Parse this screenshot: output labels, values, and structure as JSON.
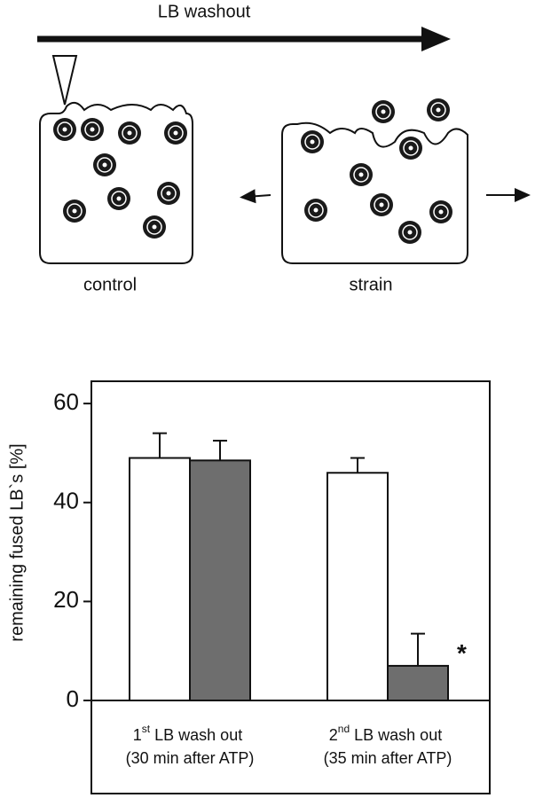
{
  "diagram": {
    "arrow_label": "LB washout"
  },
  "chart_data": {
    "type": "bar",
    "categories": [
      "1st LB wash out (30 min after ATP)",
      "2nd LB wash out (35 min after ATP)"
    ],
    "series": [
      {
        "name": "control",
        "color": "#ffffff",
        "values": [
          49,
          46
        ],
        "errors": [
          5,
          3
        ]
      },
      {
        "name": "strain",
        "color": "#6e6e6e",
        "values": [
          48.5,
          7
        ],
        "errors": [
          4,
          6.5
        ]
      }
    ],
    "ylabel": "remaining fused LB`s [%]",
    "ylim": [
      0,
      64.5
    ],
    "yticks": [
      0,
      20,
      40,
      60
    ],
    "annotations": [
      {
        "text": "*",
        "series": 1,
        "category": 1
      }
    ]
  }
}
